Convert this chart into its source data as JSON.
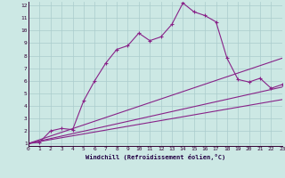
{
  "xlabel": "Windchill (Refroidissement éolien,°C)",
  "bg_color": "#cce8e4",
  "grid_color": "#aacccc",
  "line_color": "#882288",
  "xlim": [
    0,
    23
  ],
  "ylim": [
    1,
    12
  ],
  "xticks": [
    0,
    1,
    2,
    3,
    4,
    5,
    6,
    7,
    8,
    9,
    10,
    11,
    12,
    13,
    14,
    15,
    16,
    17,
    18,
    19,
    20,
    21,
    22,
    23
  ],
  "yticks": [
    1,
    2,
    3,
    4,
    5,
    6,
    7,
    8,
    9,
    10,
    11,
    12
  ],
  "series": [
    {
      "x": [
        0,
        1,
        2,
        3,
        4,
        5,
        6,
        7,
        8,
        9,
        10,
        11,
        12,
        13,
        14,
        15,
        16,
        17,
        18,
        19,
        20,
        21,
        22,
        23
      ],
      "y": [
        1,
        1.1,
        2.0,
        2.2,
        2.1,
        4.4,
        6.0,
        7.4,
        8.5,
        8.8,
        9.8,
        9.2,
        9.5,
        10.5,
        12.2,
        11.5,
        11.2,
        10.7,
        7.8,
        6.1,
        5.9,
        6.2,
        5.4,
        5.7
      ],
      "marker": "+"
    },
    {
      "x": [
        0,
        23
      ],
      "y": [
        1,
        7.8
      ],
      "marker": null
    },
    {
      "x": [
        0,
        23
      ],
      "y": [
        1,
        5.5
      ],
      "marker": null
    },
    {
      "x": [
        0,
        23
      ],
      "y": [
        1,
        4.5
      ],
      "marker": null
    }
  ]
}
